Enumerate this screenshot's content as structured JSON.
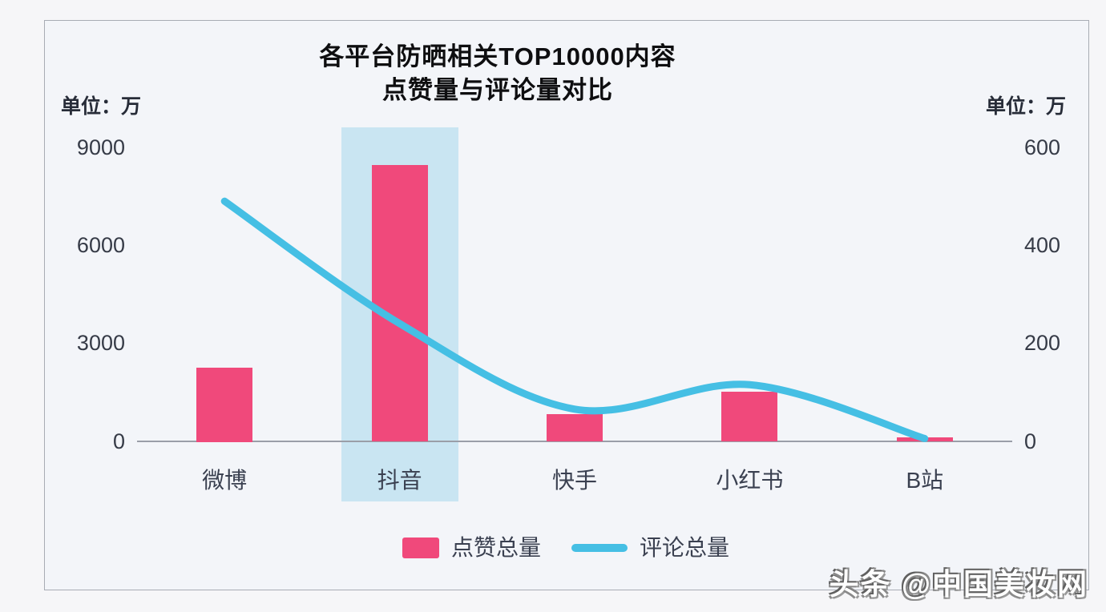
{
  "title": {
    "line1": "各平台防晒相关TOP10000内容",
    "line2": "点赞量与评论量对比"
  },
  "watermark": "头条 @中国美妆网",
  "colors": {
    "bar": "#f0497b",
    "line": "#45bfe4",
    "highlight_band": "#c9e5f2",
    "axis_line": "#9a9ea8",
    "card_background": "#f3f5f9",
    "card_border": "#a8acb4",
    "page_background": "#f6f6f8"
  },
  "legend": {
    "items": [
      {
        "label": "点赞总量",
        "marker": "bar-swatch"
      },
      {
        "label": "评论总量",
        "marker": "line-swatch"
      }
    ]
  },
  "chart_data": {
    "type": "bar",
    "title": "各平台防晒相关TOP10000内容 点赞量与评论量对比",
    "categories": [
      "微博",
      "抖音",
      "快手",
      "小红书",
      "B站"
    ],
    "highlighted_category": "抖音",
    "series": [
      {
        "name": "点赞总量",
        "type": "bar",
        "axis": "left",
        "color": "#f0497b",
        "values": [
          2250,
          8450,
          830,
          1520,
          100
        ]
      },
      {
        "name": "评论总量",
        "type": "line",
        "axis": "right",
        "color": "#45bfe4",
        "values": [
          490,
          240,
          65,
          115,
          5
        ]
      }
    ],
    "left_axis": {
      "label": "单位：万",
      "ticks": [
        "9000",
        "6000",
        "3000",
        "0"
      ],
      "range": [
        0,
        9000
      ]
    },
    "right_axis": {
      "label": "单位：万",
      "ticks": [
        "600",
        "400",
        "200",
        "0"
      ],
      "range": [
        0,
        600
      ]
    },
    "grid": false,
    "legend_position": "bottom"
  }
}
